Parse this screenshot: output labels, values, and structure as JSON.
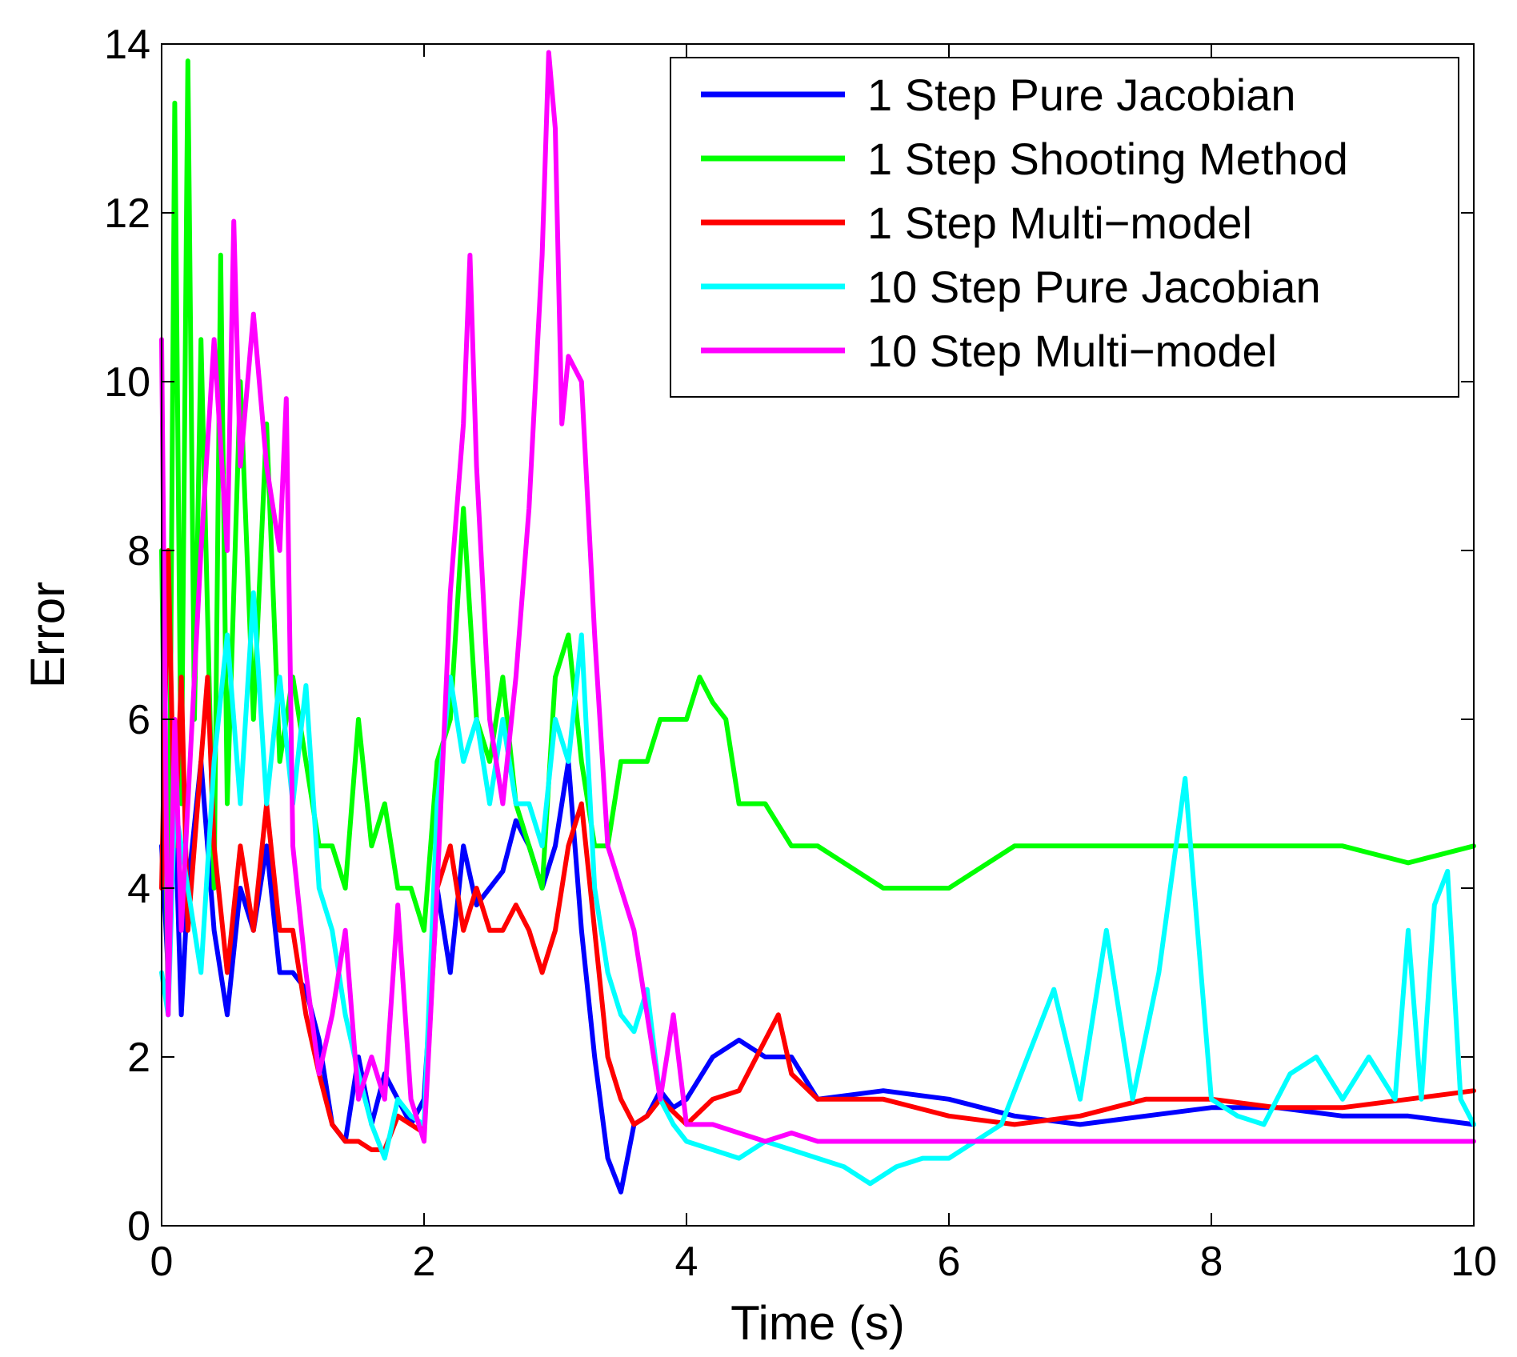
{
  "chart_data": {
    "type": "line",
    "title": "",
    "xlabel": "Time (s)",
    "ylabel": "Error",
    "xlim": [
      0,
      10
    ],
    "ylim": [
      0,
      14
    ],
    "xticks": [
      0,
      2,
      4,
      6,
      8,
      10
    ],
    "yticks": [
      0,
      2,
      4,
      6,
      8,
      10,
      12,
      14
    ],
    "grid": false,
    "legend_position": "top-right",
    "series": [
      {
        "name": "1 Step Pure Jacobian",
        "color": "#0000ff",
        "x": [
          0,
          0.05,
          0.1,
          0.15,
          0.2,
          0.3,
          0.4,
          0.5,
          0.6,
          0.7,
          0.8,
          0.9,
          1.0,
          1.1,
          1.2,
          1.3,
          1.4,
          1.5,
          1.6,
          1.7,
          1.8,
          1.9,
          2.0,
          2.1,
          2.2,
          2.3,
          2.4,
          2.5,
          2.6,
          2.7,
          2.8,
          2.9,
          3.0,
          3.1,
          3.2,
          3.3,
          3.4,
          3.5,
          3.6,
          3.7,
          3.8,
          3.9,
          4.0,
          4.2,
          4.4,
          4.6,
          4.8,
          5.0,
          5.5,
          6.0,
          6.5,
          7.0,
          7.5,
          8.0,
          8.5,
          9.0,
          9.5,
          10.0
        ],
        "y": [
          4.5,
          3.0,
          5.0,
          2.5,
          4.0,
          5.5,
          3.5,
          2.5,
          4.0,
          3.5,
          4.5,
          3.0,
          3.0,
          2.8,
          2.2,
          1.2,
          1.0,
          2.0,
          1.2,
          1.8,
          1.5,
          1.2,
          1.5,
          4.0,
          3.0,
          4.5,
          3.8,
          4.0,
          4.2,
          4.8,
          4.5,
          4.0,
          4.5,
          5.5,
          3.5,
          2.0,
          0.8,
          0.4,
          1.2,
          1.3,
          1.6,
          1.4,
          1.5,
          2.0,
          2.2,
          2.0,
          2.0,
          1.5,
          1.6,
          1.5,
          1.3,
          1.2,
          1.3,
          1.4,
          1.4,
          1.3,
          1.3,
          1.2
        ]
      },
      {
        "name": "1 Step Shooting Method",
        "color": "#00ff00",
        "x": [
          0,
          0.05,
          0.1,
          0.15,
          0.2,
          0.25,
          0.3,
          0.4,
          0.45,
          0.5,
          0.6,
          0.7,
          0.8,
          0.9,
          1.0,
          1.1,
          1.2,
          1.3,
          1.4,
          1.5,
          1.6,
          1.7,
          1.8,
          1.9,
          2.0,
          2.1,
          2.2,
          2.3,
          2.4,
          2.5,
          2.6,
          2.7,
          2.8,
          2.9,
          3.0,
          3.1,
          3.2,
          3.3,
          3.4,
          3.5,
          3.6,
          3.7,
          3.8,
          3.9,
          4.0,
          4.1,
          4.2,
          4.3,
          4.4,
          4.6,
          4.8,
          5.0,
          5.5,
          6.0,
          6.5,
          7.0,
          7.5,
          8.0,
          8.5,
          9.0,
          9.5,
          10.0
        ],
        "y": [
          8.0,
          2.5,
          13.3,
          5.0,
          13.8,
          6.0,
          10.5,
          4.0,
          11.5,
          5.0,
          10.0,
          6.0,
          9.5,
          5.5,
          6.5,
          5.5,
          4.5,
          4.5,
          4.0,
          6.0,
          4.5,
          5.0,
          4.0,
          4.0,
          3.5,
          5.5,
          6.0,
          8.5,
          6.0,
          5.5,
          6.5,
          5.0,
          4.5,
          4.0,
          6.5,
          7.0,
          5.5,
          4.5,
          4.5,
          5.5,
          5.5,
          5.5,
          6.0,
          6.0,
          6.0,
          6.5,
          6.2,
          6.0,
          5.0,
          5.0,
          4.5,
          4.5,
          4.0,
          4.0,
          4.5,
          4.5,
          4.5,
          4.5,
          4.5,
          4.5,
          4.3,
          4.5
        ]
      },
      {
        "name": "1 Step Multi−model",
        "color": "#ff0000",
        "x": [
          0,
          0.05,
          0.1,
          0.15,
          0.2,
          0.3,
          0.35,
          0.4,
          0.5,
          0.6,
          0.7,
          0.8,
          0.9,
          1.0,
          1.1,
          1.2,
          1.3,
          1.4,
          1.5,
          1.6,
          1.7,
          1.8,
          1.9,
          2.0,
          2.1,
          2.2,
          2.3,
          2.4,
          2.5,
          2.6,
          2.7,
          2.8,
          2.9,
          3.0,
          3.1,
          3.2,
          3.3,
          3.4,
          3.5,
          3.6,
          3.7,
          3.8,
          4.0,
          4.2,
          4.4,
          4.6,
          4.7,
          4.8,
          5.0,
          5.5,
          6.0,
          6.5,
          7.0,
          7.5,
          8.0,
          8.5,
          9.0,
          9.5,
          10.0
        ],
        "y": [
          4.0,
          8.0,
          4.5,
          6.5,
          3.5,
          5.5,
          6.5,
          4.5,
          3.0,
          4.5,
          3.5,
          5.0,
          3.5,
          3.5,
          2.5,
          1.8,
          1.2,
          1.0,
          1.0,
          0.9,
          0.9,
          1.3,
          1.2,
          1.1,
          4.0,
          4.5,
          3.5,
          4.0,
          3.5,
          3.5,
          3.8,
          3.5,
          3.0,
          3.5,
          4.5,
          5.0,
          3.5,
          2.0,
          1.5,
          1.2,
          1.3,
          1.5,
          1.2,
          1.5,
          1.6,
          2.2,
          2.5,
          1.8,
          1.5,
          1.5,
          1.3,
          1.2,
          1.3,
          1.5,
          1.5,
          1.4,
          1.4,
          1.5,
          1.6
        ]
      },
      {
        "name": "10 Step Pure Jacobian",
        "color": "#00ffff",
        "x": [
          0,
          0.05,
          0.1,
          0.2,
          0.3,
          0.4,
          0.5,
          0.6,
          0.7,
          0.8,
          0.9,
          1.0,
          1.1,
          1.2,
          1.3,
          1.4,
          1.5,
          1.6,
          1.7,
          1.8,
          1.9,
          2.0,
          2.1,
          2.2,
          2.3,
          2.4,
          2.5,
          2.6,
          2.7,
          2.8,
          2.9,
          3.0,
          3.1,
          3.2,
          3.3,
          3.4,
          3.5,
          3.6,
          3.7,
          3.8,
          3.9,
          4.0,
          4.2,
          4.4,
          4.6,
          4.8,
          5.0,
          5.2,
          5.4,
          5.6,
          5.8,
          6.0,
          6.2,
          6.4,
          6.6,
          6.8,
          7.0,
          7.2,
          7.4,
          7.6,
          7.8,
          8.0,
          8.2,
          8.4,
          8.6,
          8.8,
          9.0,
          9.2,
          9.4,
          9.5,
          9.6,
          9.7,
          9.8,
          9.9,
          10.0
        ],
        "y": [
          3.0,
          2.5,
          5.0,
          4.0,
          3.0,
          5.5,
          7.0,
          5.0,
          7.5,
          5.0,
          6.5,
          5.0,
          6.4,
          4.0,
          3.5,
          2.5,
          1.8,
          1.2,
          0.8,
          1.5,
          1.3,
          1.2,
          5.0,
          6.5,
          5.5,
          6.0,
          5.0,
          6.0,
          5.0,
          5.0,
          4.5,
          6.0,
          5.5,
          7.0,
          4.0,
          3.0,
          2.5,
          2.3,
          2.8,
          1.5,
          1.2,
          1.0,
          0.9,
          0.8,
          1.0,
          0.9,
          0.8,
          0.7,
          0.5,
          0.7,
          0.8,
          0.8,
          1.0,
          1.2,
          2.0,
          2.8,
          1.5,
          3.5,
          1.5,
          3.0,
          5.3,
          1.5,
          1.3,
          1.2,
          1.8,
          2.0,
          1.5,
          2.0,
          1.5,
          3.5,
          1.5,
          3.8,
          4.2,
          1.5,
          1.2
        ]
      },
      {
        "name": "10 Step Multi−model",
        "color": "#ff00ff",
        "x": [
          0,
          0.05,
          0.1,
          0.15,
          0.2,
          0.3,
          0.4,
          0.5,
          0.55,
          0.6,
          0.7,
          0.8,
          0.9,
          0.95,
          1.0,
          1.1,
          1.2,
          1.3,
          1.4,
          1.5,
          1.6,
          1.7,
          1.8,
          1.9,
          2.0,
          2.1,
          2.2,
          2.3,
          2.35,
          2.4,
          2.5,
          2.6,
          2.7,
          2.8,
          2.9,
          2.95,
          3.0,
          3.05,
          3.1,
          3.2,
          3.3,
          3.4,
          3.5,
          3.6,
          3.7,
          3.8,
          3.9,
          4.0,
          4.2,
          4.4,
          4.6,
          4.8,
          5.0,
          5.5,
          6.0,
          6.5,
          7.0,
          7.5,
          8.0,
          8.5,
          9.0,
          9.5,
          10.0
        ],
        "y": [
          10.5,
          2.5,
          6.0,
          3.5,
          5.0,
          8.0,
          10.5,
          8.0,
          11.9,
          9.0,
          10.8,
          9.0,
          8.0,
          9.8,
          4.5,
          3.0,
          1.8,
          2.5,
          3.5,
          1.5,
          2.0,
          1.5,
          3.8,
          1.5,
          1.0,
          4.0,
          7.5,
          9.5,
          11.5,
          9.0,
          6.0,
          5.0,
          6.5,
          8.5,
          11.5,
          13.9,
          13.0,
          9.5,
          10.3,
          10.0,
          7.0,
          4.5,
          4.0,
          3.5,
          2.5,
          1.5,
          2.5,
          1.2,
          1.2,
          1.1,
          1.0,
          1.1,
          1.0,
          1.0,
          1.0,
          1.0,
          1.0,
          1.0,
          1.0,
          1.0,
          1.0,
          1.0,
          1.0
        ]
      }
    ]
  }
}
